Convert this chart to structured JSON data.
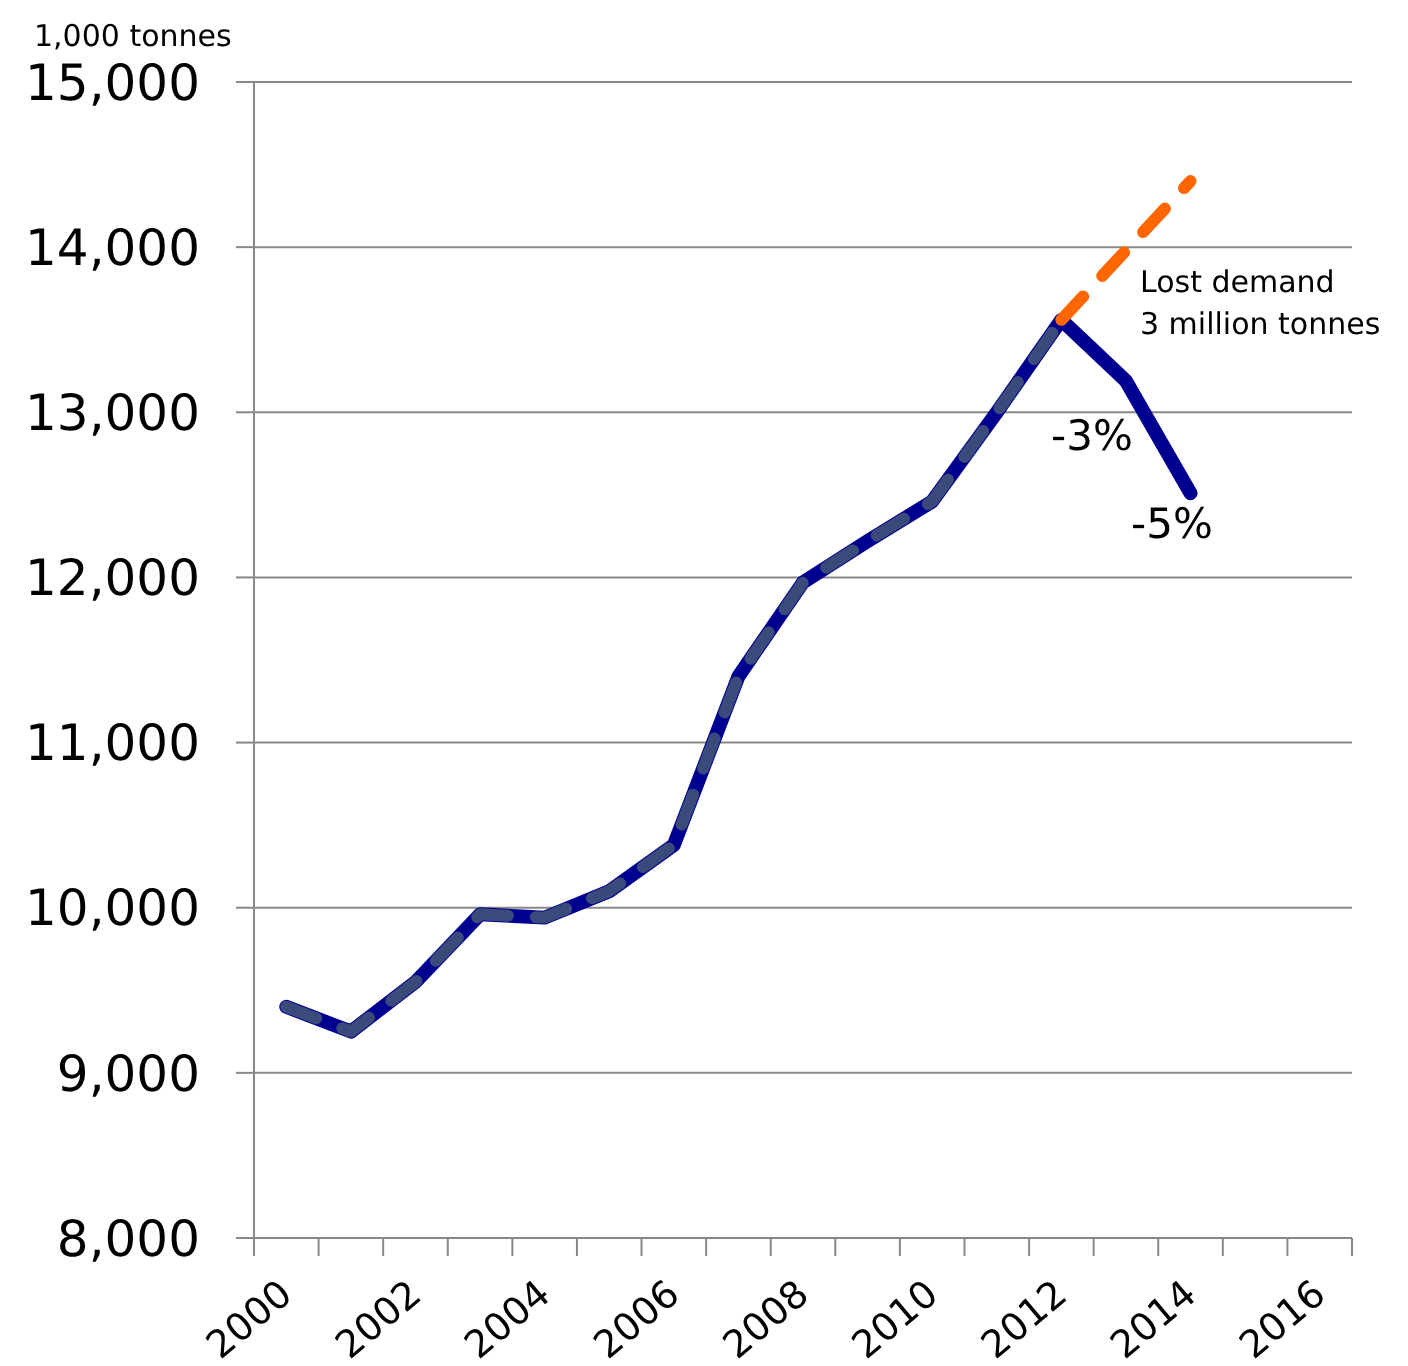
{
  "chart_data": {
    "type": "line",
    "ylabel": "1,000 tonnes",
    "annotations": [
      "Lost demand\n3 million tonnes",
      "-3%",
      "-5%"
    ],
    "categories": [
      "2000",
      null,
      "2002",
      null,
      "2004",
      null,
      "2006",
      null,
      "2008",
      null,
      "2010",
      null,
      "2012",
      null,
      "2014",
      null,
      "2016"
    ],
    "series": [
      {
        "color": "#000090",
        "line_style": "solid",
        "values": [
          9400,
          9250,
          9550,
          9960,
          9940,
          10100,
          10380,
          11400,
          11970,
          12220,
          12460,
          13000,
          13560,
          13190,
          12510,
          null,
          null
        ]
      },
      {
        "color": "#3a4a7a",
        "line_style": "dashed",
        "values": [
          9400,
          9250,
          9550,
          9960,
          9940,
          10100,
          10380,
          11400,
          11970,
          12220,
          12460,
          13000,
          13560,
          null,
          null,
          null,
          null
        ]
      },
      {
        "color": "#ff6600",
        "line_style": "dashed",
        "values": [
          null,
          null,
          null,
          null,
          null,
          null,
          null,
          null,
          null,
          null,
          null,
          null,
          13560,
          13980,
          14400,
          null,
          null
        ]
      }
    ],
    "ylim": [
      8000,
      15000
    ],
    "yticks": [
      {
        "value": 8000,
        "label": "8,000"
      },
      {
        "value": 9000,
        "label": "9,000"
      },
      {
        "value": 10000,
        "label": "10,000"
      },
      {
        "value": 11000,
        "label": "11,000"
      },
      {
        "value": 12000,
        "label": "12,000"
      },
      {
        "value": 13000,
        "label": "13,000"
      },
      {
        "value": 14000,
        "label": "14,000"
      },
      {
        "value": 15000,
        "label": "15,000"
      }
    ],
    "grid": "y",
    "marker": "none"
  }
}
